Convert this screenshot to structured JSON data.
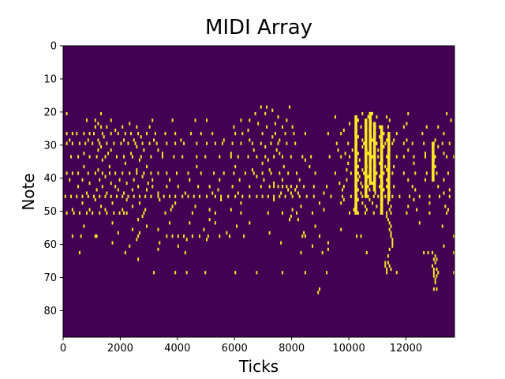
{
  "chart_data": {
    "type": "heatmap",
    "title": "MIDI Array",
    "xlabel": "Ticks",
    "ylabel": "Note",
    "xlim": [
      0,
      13700
    ],
    "ylim": [
      0,
      88
    ],
    "y_axis_inverted": true,
    "x_ticks": [
      0,
      2000,
      4000,
      6000,
      8000,
      10000,
      12000
    ],
    "x_tick_labels": [
      "0",
      "2000",
      "4000",
      "6000",
      "8000",
      "10000",
      "12000"
    ],
    "y_ticks": [
      0,
      10,
      20,
      30,
      40,
      50,
      60,
      70,
      80
    ],
    "y_tick_labels": [
      "0",
      "10",
      "20",
      "30",
      "40",
      "50",
      "60",
      "70",
      "80"
    ],
    "colormap": {
      "off": "#440154",
      "on": "#fde725"
    },
    "note_rows": [
      {
        "note": 18,
        "ticks": [
          6900,
          7100,
          7900
        ]
      },
      {
        "note": 19,
        "ticks": [
          7300
        ]
      },
      {
        "note": 20,
        "ticks": [
          100,
          1300,
          6700,
          7050,
          10450,
          10800,
          12050,
          13400
        ]
      },
      {
        "note": 21,
        "ticks": [
          7500,
          9500,
          10650,
          10950,
          11300
        ]
      },
      {
        "note": 22,
        "ticks": [
          800,
          1100,
          1650,
          3100,
          3800,
          4600,
          5000,
          6200,
          6500,
          7800,
          10300,
          11400,
          13550
        ]
      },
      {
        "note": 23,
        "ticks": [
          1200,
          2300,
          6800,
          7400,
          10000,
          10750,
          12000
        ]
      },
      {
        "note": 24,
        "ticks": [
          1100,
          1300,
          1500,
          2050,
          2550,
          3000,
          5950,
          7100,
          7650,
          8000,
          10400,
          10900,
          11050,
          11350,
          11900,
          12700,
          13100
        ]
      },
      {
        "note": 25,
        "ticks": [
          1800,
          6450,
          9800,
          10250,
          10700
        ]
      },
      {
        "note": 26,
        "ticks": [
          100,
          300,
          450,
          700,
          900,
          1050,
          1350,
          1650,
          1900,
          2150,
          2350,
          2600,
          2900,
          3200,
          3550,
          3900,
          4450,
          4800,
          5200,
          6000,
          6250,
          6950,
          7400,
          7750,
          8050,
          8450,
          9250,
          9700,
          10200,
          10550,
          10900,
          11200,
          11650,
          12550,
          13300
        ]
      },
      {
        "note": 27,
        "ticks": [
          1400,
          2700,
          7300,
          10300,
          10750,
          11050
        ]
      },
      {
        "note": 28,
        "ticks": [
          200,
          850,
          1200,
          2100,
          2450,
          3150,
          4100,
          5600,
          6500,
          7550,
          10450,
          10800,
          11300,
          11550,
          12000,
          13000
        ]
      },
      {
        "note": 29,
        "ticks": [
          100,
          300,
          550,
          750,
          1000,
          1250,
          1500,
          1750,
          2000,
          2250,
          2500,
          2750,
          3000,
          3250,
          3600,
          3900,
          4200,
          4650,
          5000,
          5300,
          5550,
          5900,
          6200,
          6600,
          6900,
          7250,
          7500,
          7800,
          8100,
          9550,
          9950,
          10250,
          10500,
          10700,
          10950,
          11250,
          11500,
          11900,
          12200,
          12600,
          12950,
          13250,
          13500
        ]
      },
      {
        "note": 30,
        "ticks": [
          1300,
          2550,
          7050,
          10450,
          10850,
          11200,
          13100
        ]
      },
      {
        "note": 31,
        "ticks": [
          1200,
          1650,
          2800,
          3300,
          6650,
          7450,
          9600,
          10100,
          10600,
          11000,
          11400,
          12050
        ]
      },
      {
        "note": 32,
        "ticks": [
          700,
          1550,
          2350,
          3450,
          5850,
          7550,
          9850,
          10300,
          10650,
          11350,
          12650,
          13300
        ]
      },
      {
        "note": 33,
        "ticks": [
          250,
          500,
          900,
          1150,
          1450,
          1850,
          2100,
          2400,
          2700,
          3050,
          3450,
          3850,
          4150,
          4650,
          4950,
          5450,
          5850,
          6100,
          6450,
          6750,
          7050,
          7350,
          7650,
          7950,
          8350,
          8650,
          9300,
          9700,
          10000,
          10250,
          10550,
          10800,
          11000,
          11300,
          11650,
          11900,
          12250,
          12650,
          13000,
          13400,
          13650
        ]
      },
      {
        "note": 34,
        "ticks": [
          1350,
          2650,
          7150,
          8450,
          10350,
          10750,
          11150,
          12950
        ]
      },
      {
        "note": 35,
        "ticks": [
          2150,
          6950,
          9950,
          10550,
          11050,
          12250
        ]
      },
      {
        "note": 36,
        "ticks": [
          700,
          1600,
          2900,
          4650,
          6000,
          7700,
          8600,
          10300,
          10600,
          10900,
          11250,
          11550,
          13000
        ]
      },
      {
        "note": 37,
        "ticks": [
          1200,
          2550,
          6600,
          7200,
          9900,
          10450,
          10850,
          11300
        ]
      },
      {
        "note": 38,
        "ticks": [
          100,
          300,
          500,
          850,
          1100,
          1350,
          1600,
          1800,
          2050,
          2300,
          2550,
          2800,
          3050,
          3300,
          3600,
          3950,
          4350,
          4800,
          5250,
          5600,
          5950,
          6350,
          6650,
          6950,
          7250,
          7550,
          7850,
          8150,
          8800,
          9500,
          10050,
          10300,
          10500,
          10700,
          10950,
          11200,
          11500,
          11900,
          12300,
          12700,
          13050,
          13450
        ]
      },
      {
        "note": 39,
        "ticks": [
          1450,
          2750,
          6750,
          10350,
          10650,
          11050
        ]
      },
      {
        "note": 40,
        "ticks": [
          200,
          650,
          1250,
          1950,
          2450,
          3100,
          3700,
          4400,
          5450,
          6150,
          7000,
          7650,
          8250,
          9900,
          10300,
          10600,
          10900,
          11300,
          12050,
          12650,
          13300
        ]
      },
      {
        "note": 41,
        "ticks": [
          900,
          1650,
          2200,
          2950,
          7350,
          9650,
          10400,
          10800,
          11150
        ]
      },
      {
        "note": 42,
        "ticks": [
          500,
          1350,
          1800,
          2600,
          3100,
          3600,
          4000,
          4700,
          5100,
          5900,
          6500,
          6900,
          7200,
          7350,
          7500,
          7650,
          7800,
          7950,
          8150,
          8400,
          8750,
          9200,
          9800,
          10250,
          10450,
          10650,
          10850,
          11050,
          11300,
          11550,
          12200,
          13100
        ]
      },
      {
        "note": 43,
        "ticks": [
          1150,
          1900,
          2400,
          2900,
          5400,
          7850,
          8100,
          9750,
          10300,
          10700,
          11200,
          12300,
          13500
        ]
      },
      {
        "note": 44,
        "ticks": [
          800,
          1500,
          2100,
          3300,
          4250,
          5200,
          6100,
          7600,
          7950,
          8200,
          9100,
          10400,
          10900,
          11400,
          13300
        ]
      },
      {
        "note": 45,
        "ticks": [
          50,
          250,
          450,
          650,
          850,
          1050,
          1250,
          1450,
          1650,
          1850,
          2050,
          2250,
          2450,
          2650,
          2850,
          3050,
          3300,
          3500,
          3700,
          3900,
          4150,
          4350,
          4550,
          4750,
          5000,
          5300,
          5500,
          5750,
          6000,
          6250,
          6500,
          6750,
          6950,
          7150,
          7350,
          7550,
          7750,
          8000,
          8250,
          8500,
          8750,
          9350,
          9750,
          10050,
          10250,
          10450,
          10650,
          10850,
          11000,
          11250,
          11500,
          11750,
          12100,
          12450,
          12800,
          13150,
          13500
        ]
      },
      {
        "note": 46,
        "ticks": [
          1100,
          2200,
          3350,
          5500,
          7350,
          9800,
          10300,
          10700,
          11150,
          12250
        ]
      },
      {
        "note": 47,
        "ticks": [
          650,
          1700,
          2650,
          3900,
          6200,
          8950,
          9700,
          10450,
          10800,
          11350,
          12800
        ]
      },
      {
        "note": 48,
        "ticks": [
          1300,
          2400,
          3800,
          4600,
          8300,
          10200,
          10550,
          10950,
          11450,
          12050,
          13350
        ]
      },
      {
        "note": 49,
        "ticks": [
          300,
          900,
          1450,
          2050,
          2850,
          3750,
          5100,
          5850,
          8000,
          9100,
          10150,
          10600,
          11100,
          11400,
          12350,
          13450
        ]
      },
      {
        "note": 50,
        "ticks": [
          100,
          350,
          550,
          800,
          1000,
          1250,
          1500,
          1750,
          1950,
          2100,
          2200,
          2800,
          3550,
          4500,
          5300,
          6200,
          7150,
          7650,
          8150,
          8700,
          10000,
          10300,
          10550,
          10850,
          11100,
          11300,
          11450,
          12000,
          12800,
          13400
        ]
      },
      {
        "note": 51,
        "ticks": [
          2750,
          7950,
          11300
        ]
      },
      {
        "note": 52,
        "ticks": [
          2600,
          5100,
          7900,
          8200,
          11350
        ]
      },
      {
        "note": 53,
        "ticks": [
          1700,
          3700,
          4400,
          5300,
          6500,
          11400,
          12450
        ]
      },
      {
        "note": 54,
        "ticks": [
          700,
          2900,
          6050,
          8800,
          11450,
          13250
        ]
      },
      {
        "note": 55,
        "ticks": [
          2400,
          3300,
          4900,
          9700,
          11400
        ]
      },
      {
        "note": 56,
        "ticks": [
          1900,
          2650,
          5700,
          7200,
          8400,
          11450
        ]
      },
      {
        "note": 57,
        "ticks": [
          300,
          600,
          1100,
          1150,
          2600,
          3600,
          3800,
          4000,
          4200,
          4500,
          4750,
          5050,
          5450,
          5800,
          6300,
          8350,
          8450,
          8950,
          10250,
          10400,
          11450,
          13650
        ]
      },
      {
        "note": 58,
        "ticks": [
          2550,
          4300,
          5000,
          11500
        ]
      },
      {
        "note": 59,
        "ticks": [
          1700,
          3350,
          7600,
          9250,
          11500
        ]
      },
      {
        "note": 60,
        "ticks": [
          2300,
          4000,
          8700,
          11500,
          13300
        ]
      },
      {
        "note": 61,
        "ticks": [
          3300,
          9250,
          11400
        ]
      },
      {
        "note": 62,
        "ticks": [
          550,
          2150,
          4250,
          8300,
          9050,
          10600,
          12600,
          12750,
          12900,
          13650
        ]
      },
      {
        "note": 63,
        "ticks": [
          11350,
          13000
        ]
      },
      {
        "note": 64,
        "ticks": [
          2600,
          12950,
          13050
        ]
      },
      {
        "note": 65,
        "ticks": [
          11250,
          11350,
          13000
        ]
      },
      {
        "note": 66,
        "ticks": [
          11250,
          11400,
          12900
        ]
      },
      {
        "note": 67,
        "ticks": [
          11300,
          11450,
          12950,
          13050
        ]
      },
      {
        "note": 68,
        "ticks": [
          3150,
          3900,
          4300,
          4950,
          6000,
          6750,
          7650,
          8450,
          9200,
          11300,
          11650,
          12950,
          13100,
          13650
        ]
      },
      {
        "note": 69,
        "ticks": [
          12950,
          13050
        ]
      },
      {
        "note": 70,
        "ticks": [
          13000
        ]
      },
      {
        "note": 71,
        "ticks": [
          13000
        ]
      },
      {
        "note": 73,
        "ticks": [
          8950,
          12950,
          13050
        ]
      },
      {
        "note": 74,
        "ticks": [
          8900
        ]
      }
    ],
    "dense_blocks": [
      {
        "tick_start": 10200,
        "tick_end": 10300,
        "note_start": 21,
        "note_end": 50
      },
      {
        "tick_start": 10550,
        "tick_end": 10650,
        "note_start": 22,
        "note_end": 45
      },
      {
        "tick_start": 10700,
        "tick_end": 10800,
        "note_start": 20,
        "note_end": 41
      },
      {
        "tick_start": 10850,
        "tick_end": 10950,
        "note_start": 23,
        "note_end": 43
      },
      {
        "tick_start": 11100,
        "tick_end": 11200,
        "note_start": 24,
        "note_end": 50
      },
      {
        "tick_start": 11350,
        "tick_end": 11450,
        "note_start": 26,
        "note_end": 46
      },
      {
        "tick_start": 12900,
        "tick_end": 13000,
        "note_start": 29,
        "note_end": 40
      }
    ],
    "note_duration_ticks": 55
  }
}
